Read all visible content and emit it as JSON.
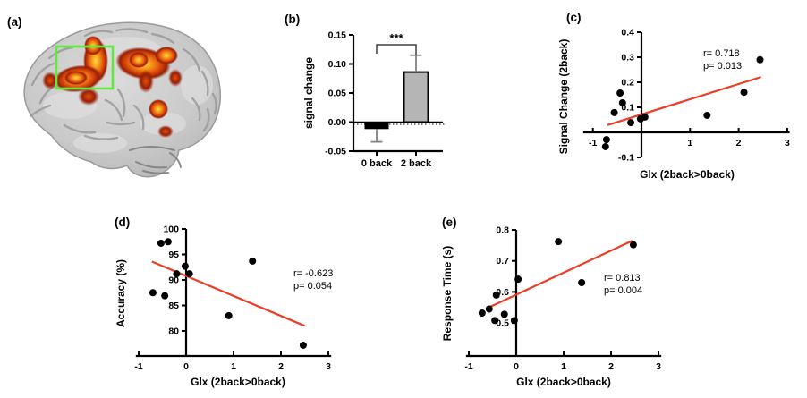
{
  "figure_labels": {
    "a": "(a)",
    "b": "(b)",
    "c": "(c)",
    "d": "(d)",
    "e": "(e)"
  },
  "colors": {
    "fit_line": "#ee3b23",
    "bar_black": "#000000",
    "bar_gray": "#b5b5b5",
    "error_bar": "#828282",
    "bracket": "#404040",
    "axis": "#000000",
    "point": "#000000",
    "roi_box": "#62e83e",
    "activation_hot": [
      "#8f1703",
      "#e85c12",
      "#ffd84d"
    ],
    "brain_gray": "#c9c9c9"
  },
  "chart_data": [
    {
      "id": "b",
      "type": "bar",
      "title": "",
      "ylabel": "signal change",
      "categories": [
        "0 back",
        "2 back"
      ],
      "values": [
        -0.012,
        0.086
      ],
      "errors_down": [
        0.022,
        0
      ],
      "errors_up": [
        0,
        0.029
      ],
      "ylim": [
        -0.05,
        0.15
      ],
      "ytick_values": [
        0.15,
        0.1,
        0.05,
        0.0,
        -0.05
      ],
      "ytick_labels": [
        "0.15",
        "0.10",
        "0.05",
        "0.00",
        "-0.05"
      ],
      "bar_fills": [
        "#000000",
        "#b5b5b5"
      ],
      "significance": "***",
      "zero_line": "dotted",
      "grid": false
    },
    {
      "id": "c",
      "type": "scatter",
      "xlabel": "Glx (2back>0back)",
      "ylabel": "Signal Change (2back)",
      "xlim": [
        -1.2,
        3.05
      ],
      "ylim": [
        -0.1,
        0.4
      ],
      "xtick_values": [
        -1,
        1,
        2,
        3
      ],
      "xtick_labels": [
        "-1",
        "1",
        "2",
        "3"
      ],
      "ytick_values": [
        0.4,
        0.3,
        0.2,
        0.1,
        -0.1
      ],
      "ytick_labels": [
        "0.4",
        "0.3",
        "0.2",
        "0.1",
        "-0.1"
      ],
      "points": [
        [
          -0.74,
          -0.057
        ],
        [
          -0.72,
          -0.029
        ],
        [
          -0.56,
          0.079
        ],
        [
          -0.44,
          0.157
        ],
        [
          -0.39,
          0.118
        ],
        [
          -0.22,
          0.039
        ],
        [
          -0.02,
          0.054
        ],
        [
          0.07,
          0.061
        ],
        [
          1.35,
          0.068
        ],
        [
          2.11,
          0.16
        ],
        [
          2.44,
          0.29
        ]
      ],
      "fit_line": {
        "x1": -0.7,
        "y1": 0.029,
        "x2": 2.46,
        "y2": 0.221
      },
      "stats": [
        "r= 0.718",
        "p= 0.013"
      ],
      "grid": false,
      "legend": "none"
    },
    {
      "id": "d",
      "type": "scatter",
      "xlabel": "Glx (2back>0back)",
      "ylabel": "Accuracy (%)",
      "xlim": [
        -1.06,
        3.06
      ],
      "ylim": [
        75.1,
        100
      ],
      "xtick_values": [
        -1,
        0,
        1,
        2,
        3
      ],
      "xtick_labels": [
        "-1",
        "0",
        "1",
        "2",
        "3"
      ],
      "ytick_values": [
        100,
        95,
        90,
        85,
        80
      ],
      "ytick_labels": [
        "100",
        "95",
        "90",
        "85",
        "80"
      ],
      "points": [
        [
          -0.7,
          87.5
        ],
        [
          -0.53,
          97.2
        ],
        [
          -0.45,
          86.9
        ],
        [
          -0.38,
          97.5
        ],
        [
          -0.2,
          91.2
        ],
        [
          -0.02,
          92.7
        ],
        [
          0.07,
          91.2
        ],
        [
          0.9,
          83.0
        ],
        [
          1.4,
          93.7
        ],
        [
          2.47,
          77.2
        ]
      ],
      "fit_line": {
        "x1": -0.72,
        "y1": 93.6,
        "x2": 2.5,
        "y2": 81.0
      },
      "stats": [
        "r= -0.623",
        "p= 0.054"
      ],
      "grid": false,
      "legend": "none"
    },
    {
      "id": "e",
      "type": "scatter",
      "xlabel": "Glx (2back>0back)",
      "ylabel": "Response Time (s)",
      "xlim": [
        -1.06,
        3.06
      ],
      "ylim": [
        0.394,
        0.8
      ],
      "xtick_values": [
        -1,
        0,
        1,
        2,
        3
      ],
      "xtick_labels": [
        "-1",
        "0",
        "1",
        "2",
        "3"
      ],
      "ytick_values": [
        0.8,
        0.7,
        0.6,
        0.5
      ],
      "ytick_labels": [
        "0.8",
        "0.7",
        "0.6",
        "0.5"
      ],
      "points": [
        [
          -0.72,
          0.532
        ],
        [
          -0.57,
          0.545
        ],
        [
          -0.45,
          0.508
        ],
        [
          -0.42,
          0.59
        ],
        [
          -0.25,
          0.528
        ],
        [
          -0.04,
          0.508
        ],
        [
          0.04,
          0.641
        ],
        [
          0.89,
          0.762
        ],
        [
          1.38,
          0.63
        ],
        [
          2.47,
          0.752
        ]
      ],
      "fit_line": {
        "x1": -0.62,
        "y1": 0.547,
        "x2": 2.45,
        "y2": 0.765
      },
      "stats": [
        "r= 0.813",
        "p= 0.004"
      ],
      "grid": false,
      "legend": "none"
    }
  ]
}
